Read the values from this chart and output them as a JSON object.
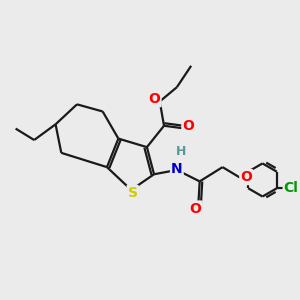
{
  "bg_color": "#ebebeb",
  "bond_color": "#1a1a1a",
  "atom_colors": {
    "O": "#ff0000",
    "N": "#0000cc",
    "S": "#cccc00",
    "Cl": "#009900",
    "H": "#559999",
    "C": "#1a1a1a"
  },
  "font_size_atom": 9,
  "line_width": 1.6
}
